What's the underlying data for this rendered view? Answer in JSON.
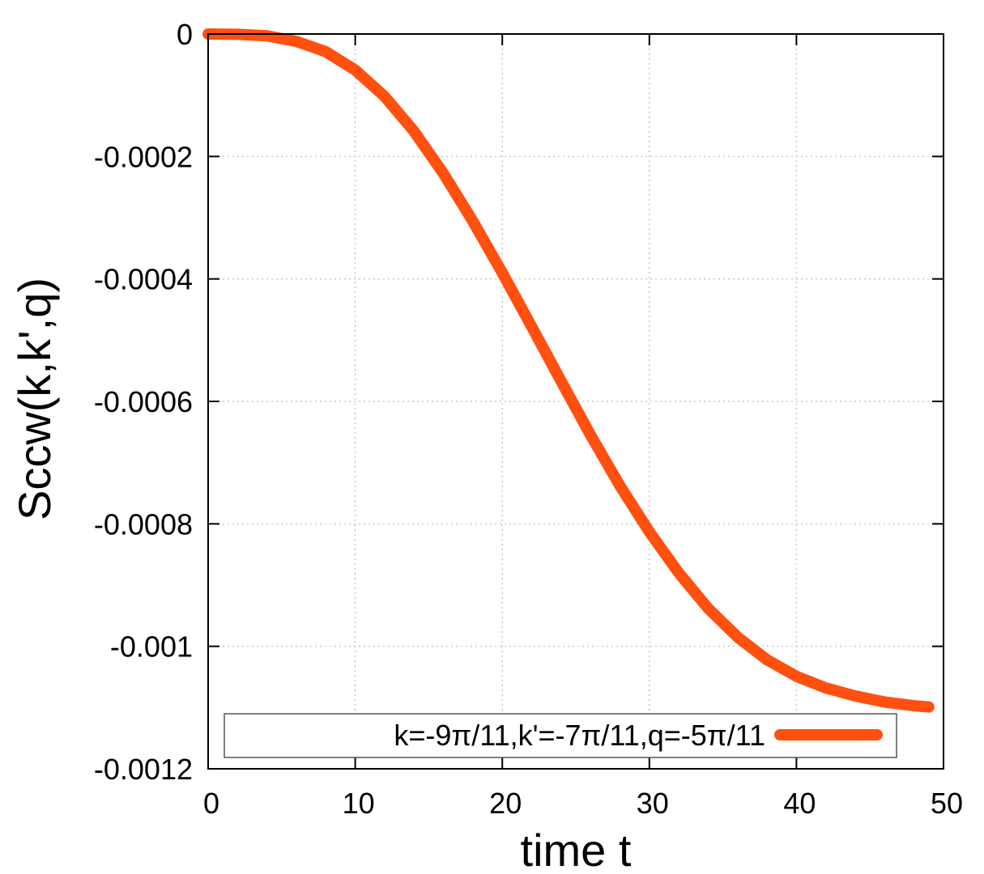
{
  "chart_data": {
    "type": "line",
    "title": "",
    "xlabel": "time t",
    "ylabel": "Sccw(k,k',q)",
    "xlim": [
      0,
      50
    ],
    "ylim": [
      -0.0012,
      0
    ],
    "x_ticks": [
      0,
      10,
      20,
      30,
      40,
      50
    ],
    "y_ticks": [
      0,
      -0.0002,
      -0.0004,
      -0.0006,
      -0.0008,
      -0.001,
      -0.0012
    ],
    "x_tick_labels": [
      "0",
      "10",
      "20",
      "30",
      "40",
      "50"
    ],
    "y_tick_labels": [
      "0",
      "-0.0002",
      "-0.0004",
      "-0.0006",
      "-0.0008",
      "-0.001",
      "-0.0012"
    ],
    "grid": true,
    "legend_position": "bottom",
    "series": [
      {
        "name": "k=-9π/11,k'=-7π/11,q=-5π/11",
        "color": "#ff5010",
        "x": [
          0,
          2,
          4,
          6,
          8,
          10,
          12,
          14,
          16,
          18,
          20,
          22,
          24,
          26,
          28,
          30,
          32,
          34,
          36,
          38,
          40,
          42,
          44,
          46,
          48,
          49
        ],
        "y": [
          0,
          -5e-07,
          -3e-06,
          -1.2e-05,
          -2.9e-05,
          -5.9e-05,
          -0.000102,
          -0.000159,
          -0.000228,
          -0.000306,
          -0.00039,
          -0.000478,
          -0.000567,
          -0.000655,
          -0.000738,
          -0.000813,
          -0.00088,
          -0.000938,
          -0.000985,
          -0.001022,
          -0.001049,
          -0.001068,
          -0.001081,
          -0.001091,
          -0.001097,
          -0.001099
        ]
      }
    ]
  }
}
